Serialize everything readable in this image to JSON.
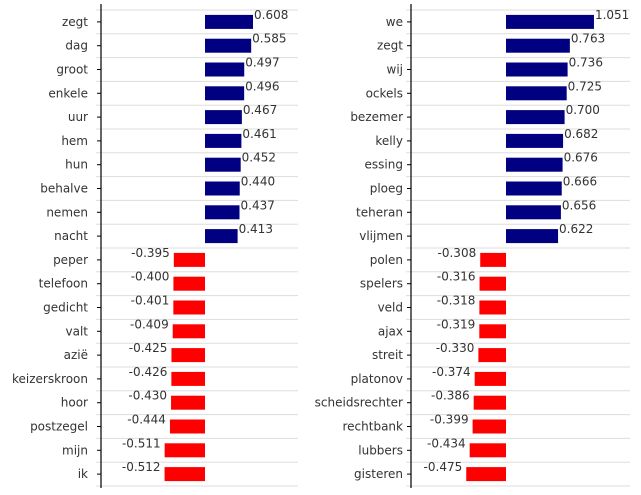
{
  "colors": {
    "positive": "#000080",
    "negative": "#ff0000",
    "grid": "#dddddd",
    "axis": "#000000",
    "text": "#333333"
  },
  "chart_data": [
    {
      "type": "bar",
      "orientation": "horizontal",
      "grid": "horizontal",
      "categories": [
        "zegt",
        "dag",
        "groot",
        "enkele",
        "uur",
        "hem",
        "hun",
        "behalve",
        "nemen",
        "nacht",
        "peper",
        "telefoon",
        "gedicht",
        "valt",
        "azië",
        "keizerskroon",
        "hoor",
        "postzegel",
        "mijn",
        "ik"
      ],
      "values": [
        0.608,
        0.585,
        0.497,
        0.496,
        0.467,
        0.461,
        0.452,
        0.44,
        0.437,
        0.413,
        -0.395,
        -0.4,
        -0.401,
        -0.409,
        -0.425,
        -0.426,
        -0.43,
        -0.444,
        -0.511,
        -0.512
      ],
      "value_labels": [
        "0.608",
        "0.585",
        "0.497",
        "0.496",
        "0.467",
        "0.461",
        "0.452",
        "0.440",
        "0.437",
        "0.413",
        "-0.395",
        "-0.400",
        "-0.401",
        "-0.409",
        "-0.425",
        "-0.426",
        "-0.430",
        "-0.444",
        "-0.511",
        "-0.512"
      ]
    },
    {
      "type": "bar",
      "orientation": "horizontal",
      "grid": "horizontal",
      "categories": [
        "we",
        "zegt",
        "wij",
        "ockels",
        "bezemer",
        "kelly",
        "essing",
        "ploeg",
        "teheran",
        "vlijmen",
        "polen",
        "spelers",
        "veld",
        "ajax",
        "streit",
        "platonov",
        "scheidsrechter",
        "rechtbank",
        "lubbers",
        "gisteren"
      ],
      "values": [
        1.051,
        0.763,
        0.736,
        0.725,
        0.7,
        0.682,
        0.676,
        0.666,
        0.656,
        0.622,
        -0.308,
        -0.316,
        -0.318,
        -0.319,
        -0.33,
        -0.374,
        -0.386,
        -0.399,
        -0.434,
        -0.475
      ],
      "value_labels": [
        "1.051",
        "0.763",
        "0.736",
        "0.725",
        "0.700",
        "0.682",
        "0.676",
        "0.666",
        "0.656",
        "0.622",
        "-0.308",
        "-0.316",
        "-0.318",
        "-0.319",
        "-0.330",
        "-0.374",
        "-0.386",
        "-0.399",
        "-0.434",
        "-0.475"
      ]
    }
  ]
}
